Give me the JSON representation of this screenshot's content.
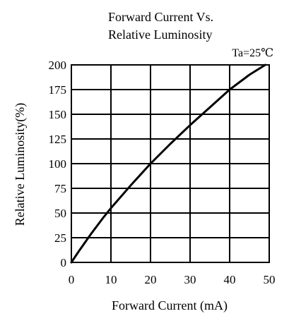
{
  "chart_data": {
    "type": "line",
    "title_line1": "Forward  Current  Vs.",
    "title_line2": "Relative Luminosity",
    "condition": "Ta=25℃",
    "xlabel": "Forward Current (mA)",
    "ylabel": "Relative  Luminosity(%)",
    "xlim": [
      0,
      50
    ],
    "ylim": [
      0,
      200
    ],
    "x_ticks": [
      0,
      10,
      20,
      30,
      40,
      50
    ],
    "y_ticks": [
      0,
      25,
      50,
      75,
      100,
      125,
      150,
      175,
      200
    ],
    "grid": true,
    "series": [
      {
        "x": [
          0,
          2,
          5,
          8,
          10,
          15,
          20,
          25,
          30,
          35,
          40,
          45,
          49
        ],
        "y": [
          0,
          12,
          29,
          45,
          55,
          78,
          100,
          120,
          139,
          157,
          175,
          190,
          200
        ]
      }
    ],
    "line_color": "#000000"
  }
}
